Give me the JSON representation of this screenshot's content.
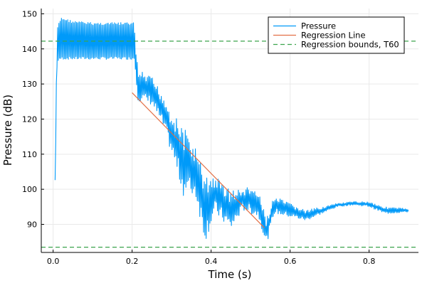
{
  "chart_data": {
    "type": "line",
    "xlabel": "Time (s)",
    "ylabel": "Pressure (dB)",
    "xlim": [
      -0.03,
      0.925
    ],
    "ylim": [
      82,
      151.5
    ],
    "x_ticks": [
      0.0,
      0.2,
      0.4,
      0.6,
      0.8
    ],
    "x_tick_labels": [
      "0.0",
      "0.2",
      "0.4",
      "0.6",
      "0.8"
    ],
    "y_ticks": [
      90,
      100,
      110,
      120,
      130,
      140,
      150
    ],
    "y_tick_labels": [
      "90",
      "100",
      "110",
      "120",
      "130",
      "140",
      "150"
    ],
    "grid": true,
    "legend_position": "top-right",
    "series": [
      {
        "name": "Pressure",
        "color": "#009af9",
        "kind": "oscillating-line",
        "envelope": [
          {
            "x": 0.005,
            "lo": 102,
            "hi": 103
          },
          {
            "x": 0.01,
            "lo": 136,
            "hi": 146
          },
          {
            "x": 0.02,
            "lo": 137,
            "hi": 149
          },
          {
            "x": 0.05,
            "lo": 137,
            "hi": 148
          },
          {
            "x": 0.1,
            "lo": 137,
            "hi": 147.5
          },
          {
            "x": 0.15,
            "lo": 137,
            "hi": 147.5
          },
          {
            "x": 0.205,
            "lo": 137,
            "hi": 147.5
          },
          {
            "x": 0.215,
            "lo": 125,
            "hi": 134
          },
          {
            "x": 0.25,
            "lo": 124,
            "hi": 132
          },
          {
            "x": 0.28,
            "lo": 117,
            "hi": 127
          },
          {
            "x": 0.3,
            "lo": 110,
            "hi": 122
          },
          {
            "x": 0.33,
            "lo": 98,
            "hi": 118
          },
          {
            "x": 0.36,
            "lo": 98,
            "hi": 112
          },
          {
            "x": 0.385,
            "lo": 85,
            "hi": 104
          },
          {
            "x": 0.41,
            "lo": 93,
            "hi": 104
          },
          {
            "x": 0.45,
            "lo": 88,
            "hi": 100
          },
          {
            "x": 0.48,
            "lo": 94,
            "hi": 100
          },
          {
            "x": 0.5,
            "lo": 93,
            "hi": 101
          },
          {
            "x": 0.52,
            "lo": 92,
            "hi": 99
          },
          {
            "x": 0.54,
            "lo": 84,
            "hi": 92
          },
          {
            "x": 0.56,
            "lo": 93,
            "hi": 98
          },
          {
            "x": 0.6,
            "lo": 92,
            "hi": 96
          },
          {
            "x": 0.64,
            "lo": 91,
            "hi": 94
          },
          {
            "x": 0.68,
            "lo": 93,
            "hi": 95
          },
          {
            "x": 0.72,
            "lo": 95,
            "hi": 96
          },
          {
            "x": 0.76,
            "lo": 95.5,
            "hi": 96.5
          },
          {
            "x": 0.8,
            "lo": 95,
            "hi": 96.5
          },
          {
            "x": 0.84,
            "lo": 93,
            "hi": 95
          },
          {
            "x": 0.9,
            "lo": 93.5,
            "hi": 94.5
          }
        ]
      },
      {
        "name": "Regression Line",
        "color": "#e26f46",
        "x": [
          0.2,
          0.535
        ],
        "y": [
          127.5,
          89.0
        ]
      },
      {
        "name": "Regression bounds, T60",
        "color": "#3da44d",
        "dashed": true,
        "hlines": [
          142.2,
          83.5
        ]
      }
    ]
  }
}
